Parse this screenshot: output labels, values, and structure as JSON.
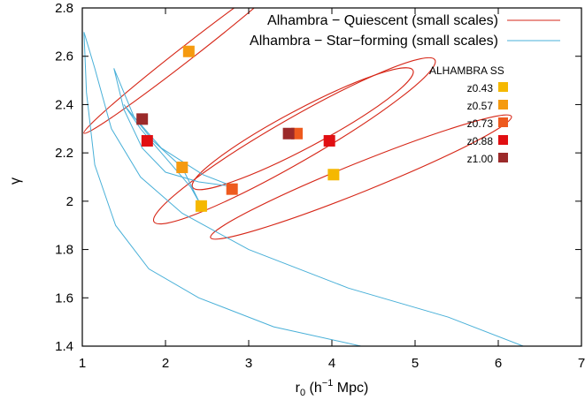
{
  "chart_data": {
    "type": "scatter",
    "title": "",
    "xlabel": "r0 (h−1 Mpc)",
    "xlabel_parts": {
      "main": "r",
      "sub": "0",
      "pre": " (h",
      "sup": "−1",
      "post": " Mpc)"
    },
    "ylabel": "γ",
    "xlim": [
      1,
      7
    ],
    "ylim": [
      1.4,
      2.8
    ],
    "xticks": [
      "1",
      "2",
      "3",
      "4",
      "5",
      "6",
      "7"
    ],
    "yticks": [
      "1.4",
      "1.6",
      "1.8",
      "2",
      "2.2",
      "2.4",
      "2.6",
      "2.8"
    ],
    "grid": false,
    "legend_position": "top-right",
    "series": [
      {
        "name": "Alhambra − Quiescent (small scales)",
        "kind": "contour",
        "color": "#d62718",
        "points": [
          {
            "label": "z0.43",
            "x": 4.02,
            "y": 2.11
          },
          {
            "label": "z0.57",
            "x": 2.28,
            "y": 2.62
          },
          {
            "label": "z0.73",
            "x": 3.58,
            "y": 2.28
          },
          {
            "label": "z0.88",
            "x": 3.97,
            "y": 2.25
          },
          {
            "label": "z1.00",
            "x": 3.48,
            "y": 2.28
          }
        ],
        "ellipses": [
          {
            "cx": 2.28,
            "cy": 2.62,
            "rx": 1.6,
            "ry": 0.03,
            "angle": -38
          },
          {
            "cx": 3.55,
            "cy": 2.25,
            "rx": 1.95,
            "ry": 0.09,
            "angle": -30
          },
          {
            "cx": 3.65,
            "cy": 2.3,
            "rx": 1.5,
            "ry": 0.08,
            "angle": -28
          },
          {
            "cx": 4.35,
            "cy": 2.1,
            "rx": 1.95,
            "ry": 0.06,
            "angle": -22
          }
        ]
      },
      {
        "name": "Alhambra − Star−forming (small scales)",
        "kind": "contour",
        "color": "#49b0d8",
        "points": [
          {
            "label": "z0.43",
            "x": 2.43,
            "y": 1.98
          },
          {
            "label": "z0.57",
            "x": 2.2,
            "y": 2.14
          },
          {
            "label": "z0.73",
            "x": 2.8,
            "y": 2.05
          },
          {
            "label": "z0.88",
            "x": 1.78,
            "y": 2.25
          },
          {
            "label": "z1.00",
            "x": 1.72,
            "y": 2.34
          }
        ]
      }
    ],
    "marker_legend": {
      "title": "ALHAMBRA SS",
      "items": [
        {
          "label": "z0.43",
          "color": "#f5b800"
        },
        {
          "label": "z0.57",
          "color": "#f59a10"
        },
        {
          "label": "z0.73",
          "color": "#ee5a1e"
        },
        {
          "label": "z0.88",
          "color": "#e10f12"
        },
        {
          "label": "z1.00",
          "color": "#9b2a2a"
        }
      ]
    }
  }
}
